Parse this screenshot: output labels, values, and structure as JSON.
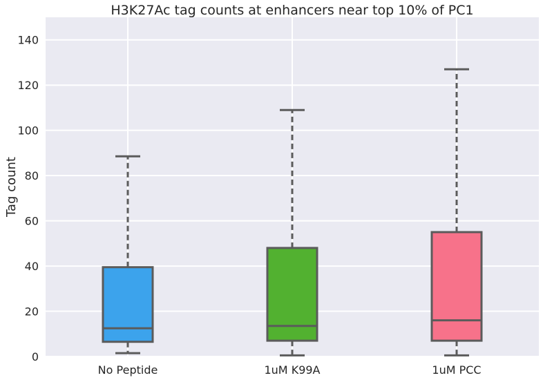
{
  "chart_data": {
    "type": "box",
    "title": "H3K27Ac tag counts at enhancers near top 10% of PC1",
    "xlabel": "",
    "ylabel": "Tag count",
    "ylim": [
      0,
      150
    ],
    "yticks": [
      0,
      20,
      40,
      60,
      80,
      100,
      120,
      140
    ],
    "ytick_labels": [
      "0",
      "20",
      "40",
      "60",
      "80",
      "100",
      "120",
      "140"
    ],
    "grid": true,
    "background": "#eaeaf2",
    "categories": [
      "No Peptide",
      "1uM K99A",
      "1uM PCC"
    ],
    "colors": [
      "#3ca3ec",
      "#52b130",
      "#f7728a"
    ],
    "boxes": [
      {
        "whisker_low": 1.5,
        "q1": 6.5,
        "median": 12.5,
        "q3": 39.5,
        "whisker_high": 88.5
      },
      {
        "whisker_low": 0.5,
        "q1": 7,
        "median": 13.5,
        "q3": 48,
        "whisker_high": 109
      },
      {
        "whisker_low": 0.5,
        "q1": 7,
        "median": 16,
        "q3": 55,
        "whisker_high": 127
      }
    ]
  }
}
